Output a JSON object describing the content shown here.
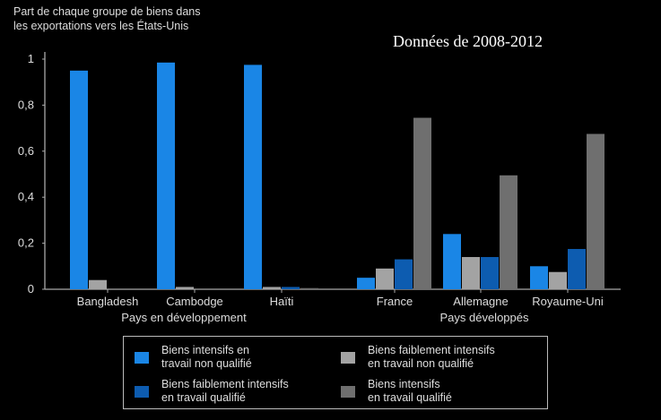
{
  "chart_data": {
    "type": "bar",
    "title": "Part de chaque groupe de biens dans les exportations vers les États-Unis",
    "ylabel_lines": [
      "Part de chaque groupe de biens dans",
      "les exportations vers les États-Unis"
    ],
    "annotation": "Données de 2008-2012",
    "ylim": [
      0,
      1
    ],
    "yticks": [
      {
        "value": 0,
        "label": "0"
      },
      {
        "value": 0.2,
        "label": "0,2"
      },
      {
        "value": 0.4,
        "label": "0,4"
      },
      {
        "value": 0.6,
        "label": "0,6"
      },
      {
        "value": 0.8,
        "label": "0,8"
      },
      {
        "value": 1,
        "label": "1"
      }
    ],
    "categories": [
      "Bangladesh",
      "Cambodge",
      "Haïti",
      "France",
      "Allemagne",
      "Royaume-Uni"
    ],
    "category_groups": [
      {
        "label": "Pays en développement",
        "categories": [
          "Bangladesh",
          "Cambodge",
          "Haïti"
        ]
      },
      {
        "label": "Pays développés",
        "categories": [
          "France",
          "Allemagne",
          "Royaume-Uni"
        ]
      }
    ],
    "series": [
      {
        "name": "Biens intensifs en travail non qualifié",
        "legend_lines": [
          "Biens intensifs en",
          "travail non qualifié"
        ],
        "color": "#1a86e6",
        "values": [
          0.95,
          0.985,
          0.975,
          0.05,
          0.24,
          0.1
        ]
      },
      {
        "name": "Biens faiblement intensifs en travail non qualifié",
        "legend_lines": [
          "Biens faiblement intensifs",
          "en travail non qualifié"
        ],
        "color": "#a3a3a3",
        "values": [
          0.04,
          0.01,
          0.01,
          0.09,
          0.14,
          0.075
        ]
      },
      {
        "name": "Biens faiblement intensifs en travail qualifié",
        "legend_lines": [
          "Biens faiblement intensifs",
          "en travail qualifié"
        ],
        "color": "#0d5cb0",
        "values": [
          0.0,
          0.0,
          0.01,
          0.13,
          0.14,
          0.175
        ]
      },
      {
        "name": "Biens intensifs en travail qualifié",
        "legend_lines": [
          "Biens intensifs",
          "en travail qualifié"
        ],
        "color": "#6f6f6f",
        "values": [
          0.0,
          0.0,
          0.005,
          0.745,
          0.495,
          0.675
        ]
      }
    ],
    "legend_position": "bottom",
    "grid": false
  }
}
